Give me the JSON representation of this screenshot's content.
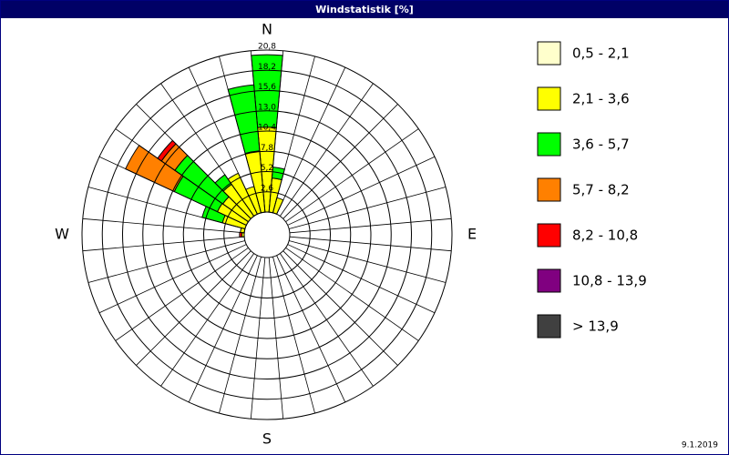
{
  "chart_data": {
    "type": "windrose",
    "title": "Windstatistik [%]",
    "date": "9.1.2019",
    "categories": [
      "N",
      null,
      null,
      null,
      null,
      null,
      null,
      null,
      null,
      "E",
      null,
      null,
      null,
      null,
      null,
      null,
      null,
      null,
      "S",
      null,
      null,
      null,
      null,
      null,
      null,
      null,
      null,
      "W",
      null,
      null,
      null,
      null,
      null,
      null,
      null,
      null
    ],
    "rlim": [
      0,
      20.8
    ],
    "rticks": [
      {
        "value": 2.6,
        "label": "2,6"
      },
      {
        "value": 5.2,
        "label": "5,2"
      },
      {
        "value": 7.8,
        "label": "7,8"
      },
      {
        "value": 10.4,
        "label": "10,4"
      },
      {
        "value": 13.0,
        "label": "13,0"
      },
      {
        "value": 15.6,
        "label": "15,6"
      },
      {
        "value": 18.2,
        "label": "18,2"
      },
      {
        "value": 20.8,
        "label": "20,8"
      }
    ],
    "series": [
      {
        "name": "0,5 - 2,1",
        "color": "#ffffcc",
        "values": [
          0,
          0,
          0,
          0,
          0,
          0,
          0,
          0,
          0,
          0,
          0,
          0,
          0,
          0,
          0,
          0,
          0,
          0,
          0,
          0,
          0,
          0,
          0,
          0,
          0,
          0,
          0,
          0,
          0,
          0,
          0,
          0,
          0,
          0,
          0,
          0
        ]
      },
      {
        "name": "2,1 - 3,6",
        "color": "#ffff00",
        "values": [
          10.9,
          4.4,
          2.0,
          0,
          0,
          0,
          0,
          0,
          0,
          0,
          0,
          0,
          0,
          0,
          0,
          0,
          0,
          0,
          0,
          0,
          0,
          0,
          0,
          0,
          0,
          0,
          0,
          0.3,
          0.5,
          3.0,
          4.1,
          4.0,
          5.0,
          5.8,
          3.5,
          7.9
        ]
      },
      {
        "name": "3,6 - 5,7",
        "color": "#00ff00",
        "values": [
          9.3,
          1.4,
          0,
          0,
          0,
          0,
          0,
          0,
          0,
          0,
          0,
          0,
          0,
          0,
          0,
          0,
          0,
          0,
          0,
          0,
          0,
          0,
          0,
          0,
          0,
          0,
          0,
          0,
          0,
          2.7,
          6.1,
          7.5,
          1.5,
          0,
          0,
          8.5
        ]
      },
      {
        "name": "5,7 - 8,2",
        "color": "#ff8000",
        "values": [
          0,
          0,
          0,
          0,
          0,
          0,
          0,
          0,
          0,
          0,
          0,
          0,
          0,
          0,
          0,
          0,
          0,
          0,
          0,
          0,
          0,
          0,
          0,
          0,
          0,
          0,
          0,
          0,
          0,
          0,
          6.9,
          2.1,
          0,
          0,
          0,
          0
        ]
      },
      {
        "name": "8,2 - 10,8",
        "color": "#ff0000",
        "values": [
          0,
          0,
          0,
          0,
          0,
          0,
          0,
          0,
          0,
          0,
          0,
          0,
          0,
          0,
          0,
          0,
          0,
          0,
          0,
          0,
          0,
          0,
          0,
          0,
          0,
          0,
          0,
          0.3,
          0,
          0,
          0,
          0.6,
          0,
          0,
          0,
          0
        ]
      },
      {
        "name": "10,8 - 13,9",
        "color": "#800080",
        "values": [
          0,
          0,
          0,
          0,
          0,
          0,
          0,
          0,
          0,
          0,
          0,
          0,
          0,
          0,
          0,
          0,
          0,
          0,
          0,
          0,
          0,
          0,
          0,
          0,
          0,
          0,
          0,
          0,
          0,
          0,
          0,
          0,
          0,
          0,
          0,
          0
        ]
      },
      {
        "name": "> 13,9",
        "color": "#404040",
        "values": [
          0,
          0,
          0,
          0,
          0,
          0,
          0,
          0,
          0,
          0,
          0,
          0,
          0,
          0,
          0,
          0,
          0,
          0,
          0,
          0,
          0,
          0,
          0,
          0,
          0,
          0,
          0,
          0,
          0,
          0,
          0,
          0,
          0,
          0,
          0,
          0
        ]
      }
    ]
  }
}
